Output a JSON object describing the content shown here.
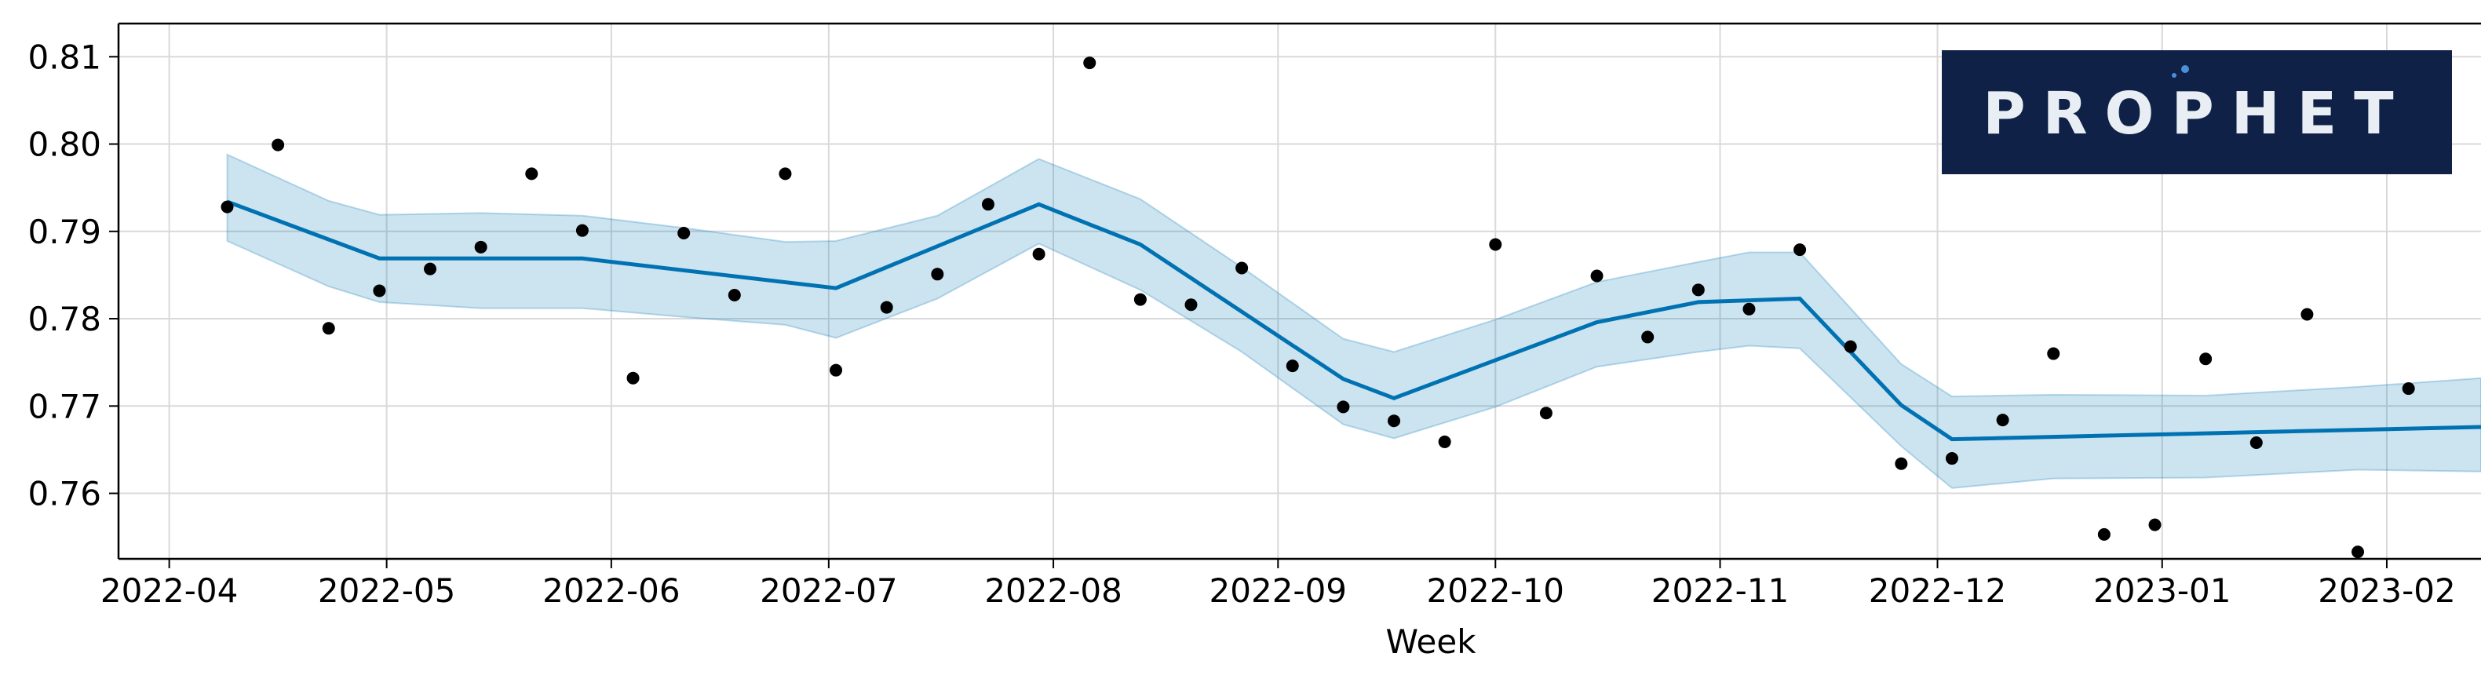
{
  "chart_data": {
    "type": "line",
    "title": "",
    "xlabel": "Week",
    "ylabel": "",
    "x_tick_labels": [
      "2022-04",
      "2022-05",
      "2022-06",
      "2022-07",
      "2022-08",
      "2022-09",
      "2022-10",
      "2022-11",
      "2022-12",
      "2023-01",
      "2023-02"
    ],
    "y_tick_labels": [
      "0.76",
      "0.77",
      "0.78",
      "0.79",
      "0.80",
      "0.81"
    ],
    "x_ticks": [
      "2022-04-01",
      "2022-05-01",
      "2022-06-01",
      "2022-07-01",
      "2022-08-01",
      "2022-09-01",
      "2022-10-01",
      "2022-11-01",
      "2022-12-01",
      "2023-01-01",
      "2023-02-01"
    ],
    "y_ticks": [
      0.76,
      0.77,
      0.78,
      0.79,
      0.8,
      0.81
    ],
    "xlim": [
      "2022-03-25",
      "2023-02-14"
    ],
    "ylim": [
      0.7525,
      0.8138
    ],
    "grid": true,
    "colors": {
      "forecast_line": "#0072B2",
      "uncertainty_band": "#0072B2",
      "observed_points": "#000000"
    },
    "series": [
      {
        "type": "scatter",
        "x": [
          "2022-04-09",
          "2022-04-16",
          "2022-04-23",
          "2022-04-30",
          "2022-05-07",
          "2022-05-14",
          "2022-05-21",
          "2022-05-28",
          "2022-06-04",
          "2022-06-11",
          "2022-06-18",
          "2022-06-25",
          "2022-07-02",
          "2022-07-09",
          "2022-07-16",
          "2022-07-23",
          "2022-07-30",
          "2022-08-06",
          "2022-08-13",
          "2022-08-20",
          "2022-08-27",
          "2022-09-03",
          "2022-09-10",
          "2022-09-17",
          "2022-09-24",
          "2022-10-01",
          "2022-10-08",
          "2022-10-15",
          "2022-10-22",
          "2022-10-29",
          "2022-11-05",
          "2022-11-12",
          "2022-11-19",
          "2022-11-26",
          "2022-12-03",
          "2022-12-10",
          "2022-12-17",
          "2022-12-24",
          "2022-12-31",
          "2023-01-07",
          "2023-01-14",
          "2023-01-21",
          "2023-01-28",
          "2023-02-04"
        ],
        "y": [
          0.7928,
          0.7999,
          0.7789,
          0.7832,
          0.7857,
          0.7882,
          0.7966,
          0.7901,
          0.7732,
          0.7898,
          0.7827,
          0.7966,
          0.7741,
          0.7813,
          0.7851,
          0.7931,
          0.7874,
          0.8093,
          0.7822,
          0.7816,
          0.7858,
          0.7746,
          0.7699,
          0.7683,
          0.7659,
          0.7885,
          0.7692,
          0.7849,
          0.7779,
          0.7833,
          0.7811,
          0.7879,
          0.7768,
          0.7634,
          0.764,
          0.7684,
          0.776,
          0.7553,
          0.7564,
          0.7754,
          0.7658,
          0.7805,
          0.7533,
          0.772
        ]
      },
      {
        "type": "line",
        "x": [
          "2022-04-09",
          "2022-04-30",
          "2022-05-28",
          "2022-07-02",
          "2022-07-30",
          "2022-08-13",
          "2022-09-10",
          "2022-09-17",
          "2022-10-15",
          "2022-10-29",
          "2022-11-12",
          "2022-11-26",
          "2022-12-03",
          "2023-02-14"
        ],
        "y": [
          0.7934,
          0.7869,
          0.7869,
          0.7835,
          0.7931,
          0.7885,
          0.7731,
          0.7709,
          0.7796,
          0.7819,
          0.7823,
          0.7701,
          0.7662,
          0.7676
        ]
      },
      {
        "type": "area",
        "x": [
          "2022-04-09",
          "2022-04-23",
          "2022-04-30",
          "2022-05-14",
          "2022-05-28",
          "2022-06-11",
          "2022-06-25",
          "2022-07-02",
          "2022-07-16",
          "2022-07-30",
          "2022-08-13",
          "2022-08-27",
          "2022-09-10",
          "2022-09-17",
          "2022-10-01",
          "2022-10-15",
          "2022-10-29",
          "2022-11-05",
          "2022-11-12",
          "2022-11-26",
          "2022-12-03",
          "2022-12-17",
          "2023-01-07",
          "2023-01-28",
          "2023-02-14"
        ],
        "upper": [
          0.7988,
          0.7935,
          0.7919,
          0.7921,
          0.7918,
          0.7904,
          0.7888,
          0.7889,
          0.7918,
          0.7983,
          0.7937,
          0.7859,
          0.7777,
          0.7762,
          0.7799,
          0.7842,
          0.7865,
          0.7876,
          0.7876,
          0.7748,
          0.7711,
          0.7713,
          0.7712,
          0.7722,
          0.7732
        ],
        "lower": [
          0.7889,
          0.7837,
          0.7819,
          0.7812,
          0.7812,
          0.7802,
          0.7793,
          0.7778,
          0.7823,
          0.7886,
          0.7833,
          0.7762,
          0.7679,
          0.7663,
          0.7699,
          0.7745,
          0.7762,
          0.7769,
          0.7766,
          0.7654,
          0.7606,
          0.7617,
          0.7618,
          0.7627,
          0.7625
        ]
      }
    ]
  },
  "logo": {
    "text": "PROPHET",
    "background": "#0f2147"
  }
}
